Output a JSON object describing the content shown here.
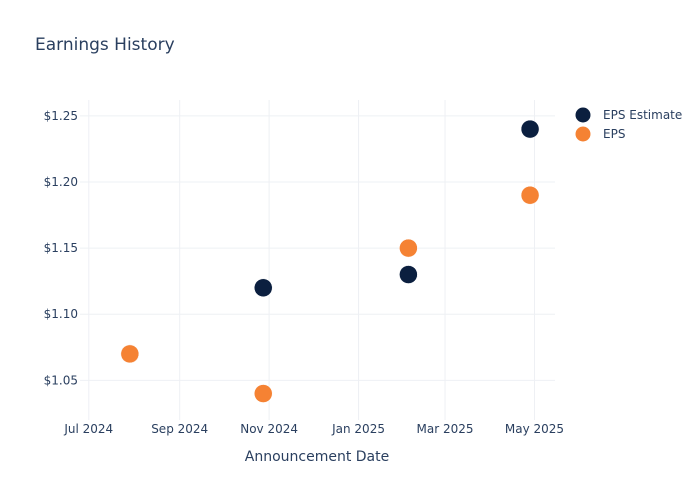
{
  "chart_data": {
    "type": "scatter",
    "title": "Earnings History",
    "xlabel": "Announcement Date",
    "ylabel": "",
    "x_ticks": [
      {
        "date": "2024-07-01",
        "label": "Jul 2024"
      },
      {
        "date": "2024-09-01",
        "label": "Sep 2024"
      },
      {
        "date": "2024-11-01",
        "label": "Nov 2024"
      },
      {
        "date": "2025-01-01",
        "label": "Jan 2025"
      },
      {
        "date": "2025-03-01",
        "label": "Mar 2025"
      },
      {
        "date": "2025-05-01",
        "label": "May 2025"
      }
    ],
    "y_ticks": [
      {
        "value": 1.05,
        "label": "$1.05"
      },
      {
        "value": 1.1,
        "label": "$1.10"
      },
      {
        "value": 1.15,
        "label": "$1.15"
      },
      {
        "value": 1.2,
        "label": "$1.20"
      },
      {
        "value": 1.25,
        "label": "$1.25"
      }
    ],
    "xlim": [
      "2024-06-25",
      "2025-05-15"
    ],
    "ylim": [
      1.02,
      1.262
    ],
    "grid": true,
    "legend_position": "top-right",
    "series": [
      {
        "name": "EPS Estimate",
        "color": "#0b1f3f",
        "points": [
          {
            "date": "2024-07-29",
            "value": 1.07
          },
          {
            "date": "2024-10-28",
            "value": 1.12
          },
          {
            "date": "2025-02-04",
            "value": 1.13
          },
          {
            "date": "2025-04-28",
            "value": 1.24
          }
        ]
      },
      {
        "name": "EPS",
        "color": "#f58233",
        "points": [
          {
            "date": "2024-07-29",
            "value": 1.07
          },
          {
            "date": "2024-10-28",
            "value": 1.04
          },
          {
            "date": "2025-02-04",
            "value": 1.15
          },
          {
            "date": "2025-04-28",
            "value": 1.19
          }
        ]
      }
    ]
  }
}
